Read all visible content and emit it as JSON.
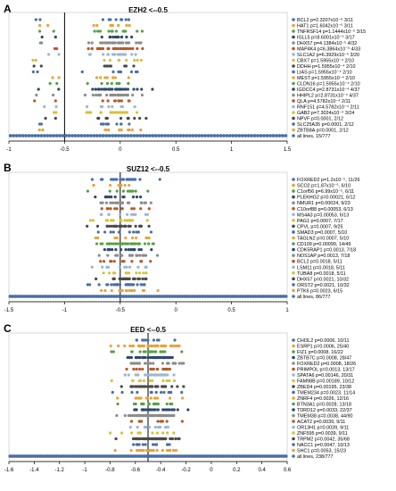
{
  "figure": {
    "background": "#ffffff"
  },
  "colors": [
    "#4a6fa5",
    "#e8a23a",
    "#5a9e46",
    "#2e4a6e",
    "#8c8c8c",
    "#b45a2a",
    "#9ab6d6",
    "#d6c23a",
    "#4a4a4a"
  ],
  "chart_data": [
    {
      "type": "scatter",
      "panel_label": "A",
      "title": "EZH2 <--0.5",
      "xlim": [
        -1,
        1.5
      ],
      "ticks": [
        -1,
        -0.5,
        0,
        0.5,
        1,
        1.5
      ],
      "tick_labels": [
        "-1",
        "-0.5",
        "0",
        "0.5",
        "1",
        "1.5"
      ],
      "threshold": -0.5,
      "series": [
        {
          "name": "BCL2 p=2.3207x10⁻⁶ 3/11",
          "n": 11
        },
        {
          "name": "HAT1 p=1.6042x10⁻⁵ 3/11",
          "n": 11
        },
        {
          "name": "TNFRSF14 p=1.1444x10⁻⁵ 3/15",
          "n": 15
        },
        {
          "name": "IGLL5 p=8.6001x10⁻⁵ 3/17",
          "n": 17
        },
        {
          "name": "DHX57 p=4.1384x10⁻⁵ 4/32",
          "n": 32
        },
        {
          "name": "MAP4K4 p=6.3864x10⁻⁵ 4/33",
          "n": 33
        },
        {
          "name": "SLC1A2 p=6.3929x10⁻⁵ 3/20",
          "n": 20
        },
        {
          "name": "CBX7 p=1.5955x10⁻⁴ 2/10",
          "n": 10
        },
        {
          "name": "DDHH p=1.5955x10⁻⁴ 2/10",
          "n": 10
        },
        {
          "name": "LIAS p=1.5955x10⁻⁴ 2/10",
          "n": 10
        },
        {
          "name": "MEST p=1.5955x10⁻⁴ 2/10",
          "n": 10
        },
        {
          "name": "CLDN16 p=1.5955x10⁻⁴ 2/10",
          "n": 10
        },
        {
          "name": "IGDCC4 p=2.8731x10⁻⁴ 4/37",
          "n": 37
        },
        {
          "name": "HHIPL2 p=2.8731x10⁻⁴ 4/37",
          "n": 37
        },
        {
          "name": "QLA p=4.5782x10⁻⁴ 2/11",
          "n": 11
        },
        {
          "name": "RNF151 p=4.5782x10⁻⁴ 2/11",
          "n": 11
        },
        {
          "name": "GAB2 p=7.3024x10⁻⁴ 3/24",
          "n": 24
        },
        {
          "name": "NPVF p=0.0001, 2/12",
          "n": 12
        },
        {
          "name": "SLC25A35 p=0.0001, 2/12",
          "n": 12
        },
        {
          "name": "ZBTB8A p=0.0001, 2/12",
          "n": 12
        },
        {
          "name": "all lines, 15/777",
          "n": 90
        }
      ]
    },
    {
      "type": "scatter",
      "panel_label": "B",
      "title": "SUZ12 <--0.5",
      "xlim": [
        -1.5,
        1
      ],
      "ticks": [
        -1.5,
        -1,
        -0.5,
        0,
        0.5,
        1
      ],
      "tick_labels": [
        "-1.5",
        "-1",
        "-0.5",
        "0",
        "0.5",
        "1"
      ],
      "threshold": -0.5,
      "series": [
        {
          "name": "FOXRED2 p=1.2x10⁻⁵, 11/26",
          "n": 26
        },
        {
          "name": "SCO2 p=1.87x10⁻⁵, 6/10",
          "n": 10
        },
        {
          "name": "C1orf56 p=6.99x10⁻⁵, 6/11",
          "n": 11
        },
        {
          "name": "PLEKHG2 p=0.00021, 6/12",
          "n": 12
        },
        {
          "name": "NMUR1 p=0.00024, 9/23",
          "n": 23
        },
        {
          "name": "C10orf88 p=0.00053, 6/13",
          "n": 13
        },
        {
          "name": "MS4A3 p=0.00053, 6/13",
          "n": 13
        },
        {
          "name": "PAG1 p=0.0007, 7/17",
          "n": 17
        },
        {
          "name": "CPVL p=0.0007, 9/25",
          "n": 25
        },
        {
          "name": "SMAD3 p=0.0007, 5/10",
          "n": 10
        },
        {
          "name": "TAGLN2 p=0.0007, 5/10",
          "n": 10
        },
        {
          "name": "CD109 p=0.00099, 14/49",
          "n": 49
        },
        {
          "name": "CDK5RAP1 p=0.0013, 7/18",
          "n": 18
        },
        {
          "name": "NOS1AP p=0.0013, 7/18",
          "n": 18
        },
        {
          "name": "BCL2 p=0.0018, 5/11",
          "n": 11
        },
        {
          "name": "LSM11 p=0.0018, 5/11",
          "n": 11
        },
        {
          "name": "TUBA8 p=0.0018, 5/11",
          "n": 11
        },
        {
          "name": "DHX57 p=0.0021, 10/32",
          "n": 32
        },
        {
          "name": "ORST2 p=0.0021, 10/32",
          "n": 32
        },
        {
          "name": "PTK6 p=0.0023, 6/15",
          "n": 15
        },
        {
          "name": "all lines, 86/777",
          "n": 110
        }
      ]
    },
    {
      "type": "scatter",
      "panel_label": "C",
      "title": "EED <--0.5",
      "xlim": [
        -1.6,
        0.6
      ],
      "ticks": [
        -1.6,
        -1.4,
        -1.2,
        -1,
        -0.8,
        -0.6,
        -0.4,
        -0.2,
        0,
        0.2,
        0.4,
        0.6
      ],
      "tick_labels": [
        "-1.6",
        "-1.4",
        "-1.2",
        "-1",
        "-0.8",
        "-0.6",
        "-0.4",
        "-0.2",
        "0",
        "0.2",
        "0.4",
        "0.6"
      ],
      "threshold": -0.5,
      "series": [
        {
          "name": "CHI3L2 p=0.0006, 10/11",
          "n": 11
        },
        {
          "name": "ESRP1 p=0.0006, 25/40",
          "n": 40
        },
        {
          "name": "FIZ1 p=0.0008, 16/22",
          "n": 22
        },
        {
          "name": "ZBTB7C p=0.0008, 28/47",
          "n": 47
        },
        {
          "name": "FOXRED2 p=0.0008, 18/26",
          "n": 26
        },
        {
          "name": "PRIMPOL p=0.0013, 13/17",
          "n": 17
        },
        {
          "name": "SPATA6 p=0.00146, 20/31",
          "n": 31
        },
        {
          "name": "FAM98B p=0.00189, 10/12",
          "n": 12
        },
        {
          "name": "ZBED4 p=0.00195, 23/38",
          "n": 38
        },
        {
          "name": "TMEM234 p=0.0023, 11/14",
          "n": 14
        },
        {
          "name": "ZNRF4 p=0.0026, 12/16",
          "n": 16
        },
        {
          "name": "BTN3A1 p=0.0028, 13/18",
          "n": 18
        },
        {
          "name": "TDRD12 p=0.0033, 22/37",
          "n": 37
        },
        {
          "name": "TMEM38 p=0.0038, 44/90",
          "n": 90
        },
        {
          "name": "ACAT2 p=0.0039, 9/11",
          "n": 11
        },
        {
          "name": "OR13H1 p=0.0039, 9/11",
          "n": 11
        },
        {
          "name": "ZNF595 p=0.0039, 9/11",
          "n": 11
        },
        {
          "name": "TRPM2 p=0.0042, 35/68",
          "n": 68
        },
        {
          "name": "NACC1 p=0.0047, 10/13",
          "n": 13
        },
        {
          "name": "SHC1 p=0.0053, 15/23",
          "n": 23
        },
        {
          "name": "all lines, 238/777",
          "n": 120
        }
      ]
    }
  ]
}
